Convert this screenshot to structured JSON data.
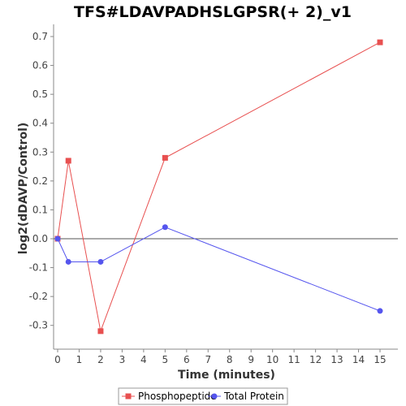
{
  "chart_data": {
    "type": "line",
    "title": "TFS#LDAVPADHSLGPSR(+ 2)_v1",
    "xlabel": "Time (minutes)",
    "ylabel": "log2(dDAVP/Control)",
    "xlim": [
      0,
      15.6
    ],
    "ylim": [
      -0.37,
      0.73
    ],
    "x_ticks": [
      "0",
      "1",
      "2",
      "3",
      "4",
      "5",
      "6",
      "7",
      "8",
      "9",
      "10",
      "11",
      "12",
      "13",
      "14",
      "15"
    ],
    "y_ticks": [
      "-0.3",
      "-0.2",
      "-0.1",
      "0.0",
      "0.1",
      "0.2",
      "0.3",
      "0.4",
      "0.5",
      "0.6",
      "0.7"
    ],
    "zero_line": true,
    "grid": false,
    "legend_position": "bottom-center",
    "series": [
      {
        "name": "Phosphopeptide",
        "color": "#e85050",
        "marker": "square",
        "x": [
          0,
          0.5,
          2,
          5,
          15
        ],
        "y": [
          0.0,
          0.27,
          -0.32,
          0.28,
          0.68
        ]
      },
      {
        "name": "Total Protein",
        "color": "#5555ee",
        "marker": "circle",
        "x": [
          0,
          0.5,
          2,
          5,
          15
        ],
        "y": [
          0.0,
          -0.08,
          -0.08,
          0.04,
          -0.25
        ]
      }
    ]
  }
}
